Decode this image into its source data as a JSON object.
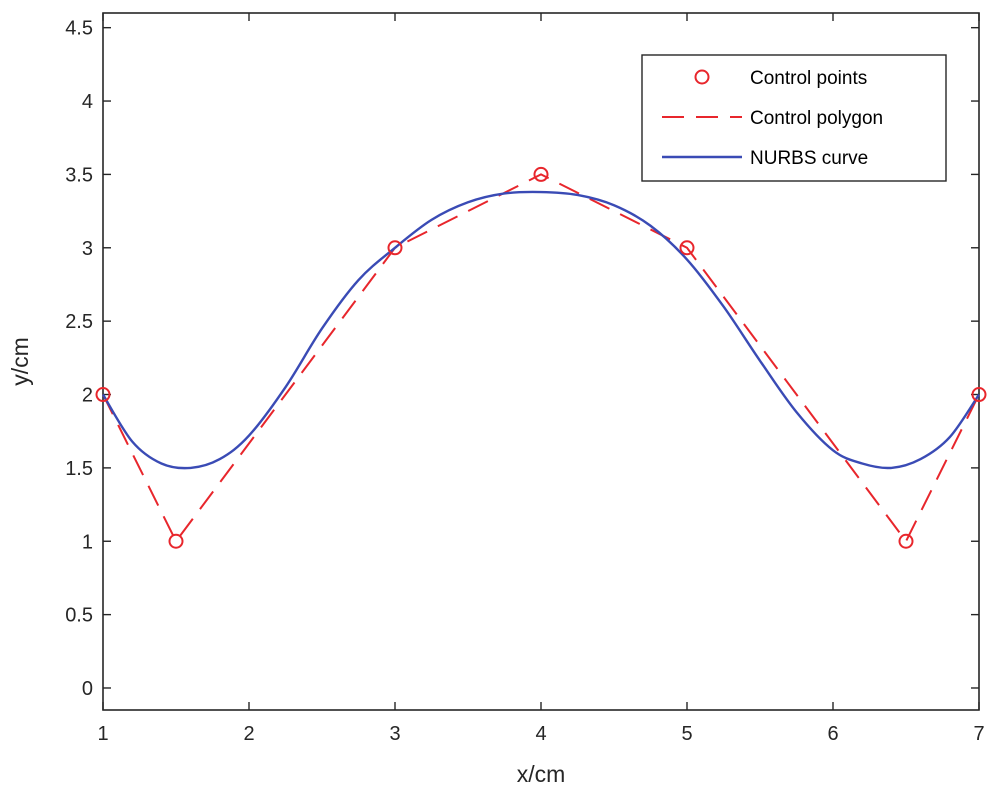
{
  "chart_data": {
    "type": "line",
    "xlabel": "x/cm",
    "ylabel": "y/cm",
    "xlim": [
      1,
      7
    ],
    "ylim": [
      -0.15,
      4.6
    ],
    "xticks": [
      1,
      2,
      3,
      4,
      5,
      6,
      7
    ],
    "yticks": [
      0,
      0.5,
      1,
      1.5,
      2,
      2.5,
      3,
      3.5,
      4,
      4.5
    ],
    "ytick_labels": [
      "0",
      "0.5",
      "1",
      "1.5",
      "2",
      "2.5",
      "3",
      "3.5",
      "4",
      "4.5"
    ],
    "grid": false,
    "legend_position": "top-right",
    "series": [
      {
        "name": "Control points",
        "style": "markers",
        "marker": "circle",
        "color": "#e8262c",
        "x": [
          1,
          1.5,
          3,
          4,
          5,
          6.5,
          7
        ],
        "y": [
          2,
          1,
          3,
          3.5,
          3,
          1,
          2
        ]
      },
      {
        "name": "Control polygon",
        "style": "dashed",
        "color": "#e8262c",
        "x": [
          1,
          1.5,
          3,
          4,
          5,
          6.5,
          7
        ],
        "y": [
          2,
          1,
          3,
          3.5,
          3,
          1,
          2
        ]
      },
      {
        "name": "NURBS curve",
        "style": "solid",
        "color": "#3a4bb5",
        "x": [
          1,
          1.2,
          1.4,
          1.6,
          1.8,
          2.0,
          2.25,
          2.5,
          2.75,
          3.0,
          3.25,
          3.5,
          3.75,
          4.0,
          4.25,
          4.5,
          4.75,
          5.0,
          5.25,
          5.5,
          5.75,
          6.0,
          6.2,
          6.4,
          6.6,
          6.8,
          7.0
        ],
        "y": [
          2.0,
          1.68,
          1.53,
          1.5,
          1.56,
          1.72,
          2.05,
          2.45,
          2.78,
          3.0,
          3.19,
          3.31,
          3.37,
          3.38,
          3.36,
          3.29,
          3.15,
          2.92,
          2.6,
          2.23,
          1.88,
          1.62,
          1.53,
          1.5,
          1.56,
          1.71,
          2.0
        ]
      }
    ]
  }
}
